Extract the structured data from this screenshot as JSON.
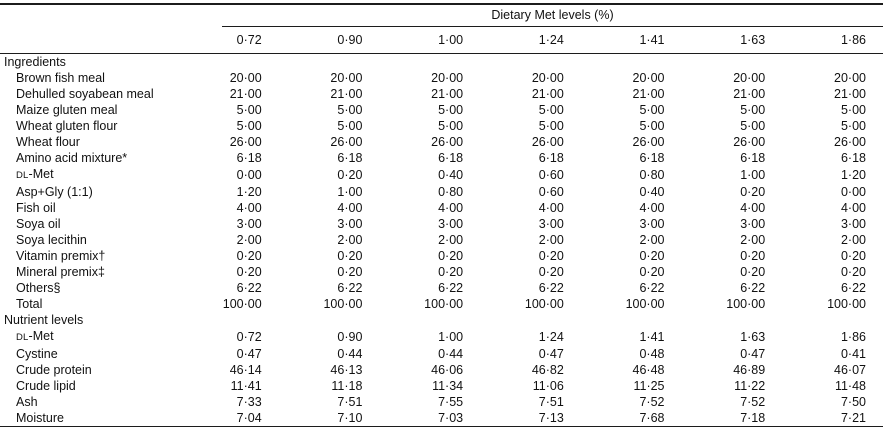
{
  "table": {
    "spanner": "Dietary Met levels (%)",
    "col_headers": [
      "0·72",
      "0·90",
      "1·00",
      "1·24",
      "1·41",
      "1·63",
      "1·86"
    ],
    "sections": [
      {
        "title": "Ingredients",
        "rows": [
          {
            "label": "Brown fish meal",
            "values": [
              "20·00",
              "20·00",
              "20·00",
              "20·00",
              "20·00",
              "20·00",
              "20·00"
            ]
          },
          {
            "label": "Dehulled soyabean meal",
            "values": [
              "21·00",
              "21·00",
              "21·00",
              "21·00",
              "21·00",
              "21·00",
              "21·00"
            ]
          },
          {
            "label": "Maize gluten meal",
            "values": [
              "5·00",
              "5·00",
              "5·00",
              "5·00",
              "5·00",
              "5·00",
              "5·00"
            ]
          },
          {
            "label": "Wheat gluten flour",
            "values": [
              "5·00",
              "5·00",
              "5·00",
              "5·00",
              "5·00",
              "5·00",
              "5·00"
            ]
          },
          {
            "label": "Wheat flour",
            "values": [
              "26·00",
              "26·00",
              "26·00",
              "26·00",
              "26·00",
              "26·00",
              "26·00"
            ]
          },
          {
            "label": "Amino acid mixture*",
            "values": [
              "6·18",
              "6·18",
              "6·18",
              "6·18",
              "6·18",
              "6·18",
              "6·18"
            ]
          },
          {
            "label_sc": "DL",
            "label": "-Met",
            "values": [
              "0·00",
              "0·20",
              "0·40",
              "0·60",
              "0·80",
              "1·00",
              "1·20"
            ]
          },
          {
            "label": "Asp+Gly (1:1)",
            "values": [
              "1·20",
              "1·00",
              "0·80",
              "0·60",
              "0·40",
              "0·20",
              "0·00"
            ]
          },
          {
            "label": "Fish oil",
            "values": [
              "4·00",
              "4·00",
              "4·00",
              "4·00",
              "4·00",
              "4·00",
              "4·00"
            ]
          },
          {
            "label": "Soya oil",
            "values": [
              "3·00",
              "3·00",
              "3·00",
              "3·00",
              "3·00",
              "3·00",
              "3·00"
            ]
          },
          {
            "label": "Soya lecithin",
            "values": [
              "2·00",
              "2·00",
              "2·00",
              "2·00",
              "2·00",
              "2·00",
              "2·00"
            ]
          },
          {
            "label": "Vitamin premix†",
            "values": [
              "0·20",
              "0·20",
              "0·20",
              "0·20",
              "0·20",
              "0·20",
              "0·20"
            ]
          },
          {
            "label": "Mineral premix‡",
            "values": [
              "0·20",
              "0·20",
              "0·20",
              "0·20",
              "0·20",
              "0·20",
              "0·20"
            ]
          },
          {
            "label": "Others§",
            "values": [
              "6·22",
              "6·22",
              "6·22",
              "6·22",
              "6·22",
              "6·22",
              "6·22"
            ]
          },
          {
            "label": "Total",
            "values": [
              "100·00",
              "100·00",
              "100·00",
              "100·00",
              "100·00",
              "100·00",
              "100·00"
            ]
          }
        ]
      },
      {
        "title": "Nutrient levels",
        "rows": [
          {
            "label_sc": "DL",
            "label": "-Met",
            "values": [
              "0·72",
              "0·90",
              "1·00",
              "1·24",
              "1·41",
              "1·63",
              "1·86"
            ]
          },
          {
            "label": "Cystine",
            "values": [
              "0·47",
              "0·44",
              "0·44",
              "0·47",
              "0·48",
              "0·47",
              "0·41"
            ]
          },
          {
            "label": "Crude protein",
            "values": [
              "46·14",
              "46·13",
              "46·06",
              "46·82",
              "46·48",
              "46·89",
              "46·07"
            ]
          },
          {
            "label": "Crude lipid",
            "values": [
              "11·41",
              "11·18",
              "11·34",
              "11·06",
              "11·25",
              "11·22",
              "11·48"
            ]
          },
          {
            "label": "Ash",
            "values": [
              "7·33",
              "7·51",
              "7·55",
              "7·51",
              "7·52",
              "7·52",
              "7·50"
            ]
          },
          {
            "label": "Moisture",
            "values": [
              "7·04",
              "7·10",
              "7·03",
              "7·13",
              "7·68",
              "7·18",
              "7·21"
            ]
          }
        ]
      }
    ]
  }
}
